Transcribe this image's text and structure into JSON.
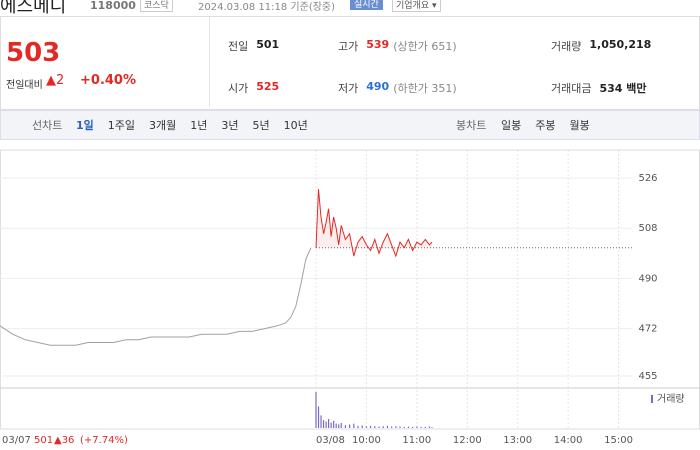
{
  "header": {
    "name": "에스메디",
    "code": "118000",
    "market": "코스닥",
    "timestamp": "2024.03.08 11:18 기준(장중)",
    "realtime": "실시간",
    "company": "기업개요 ▾"
  },
  "quote": {
    "price": "503",
    "change_label": "전일대비",
    "change": "▲2",
    "change_pct": "+0.40%",
    "items": [
      {
        "label": "전일",
        "value": "501"
      },
      {
        "label": "고가",
        "value": "539",
        "note": "(상한가 651)"
      },
      {
        "label": "거래량",
        "value": "1,050,218"
      },
      {
        "label": "시가",
        "value": "525"
      },
      {
        "label": "저가",
        "value": "490",
        "note": "(하한가 351)"
      },
      {
        "label": "거래대금",
        "value": "534 백만"
      }
    ]
  },
  "tabs": {
    "line_label": "선차트",
    "line": [
      "1일",
      "1주일",
      "3개월",
      "1년",
      "3년",
      "5년",
      "10년"
    ],
    "candle_label": "봉차트",
    "candle": [
      "일봉",
      "주봉",
      "월봉"
    ]
  },
  "chart_data": {
    "type": "line",
    "xlim": [
      -376,
      376
    ],
    "ylim": [
      455,
      526
    ],
    "yticks": [
      526,
      508,
      490,
      472,
      455
    ],
    "xticks": [
      {
        "value": -376,
        "label": "03/07"
      },
      {
        "value": 0,
        "label": "03/08"
      },
      {
        "value": 60,
        "label": "10:00"
      },
      {
        "value": 120,
        "label": "11:00"
      },
      {
        "value": 180,
        "label": "12:00"
      },
      {
        "value": 240,
        "label": "13:00"
      },
      {
        "value": 300,
        "label": "14:00"
      },
      {
        "value": 360,
        "label": "15:00"
      }
    ],
    "reference": 501,
    "series": [
      {
        "color": "#a0a0a0",
        "x": [
          -376,
          -361,
          -346,
          -331,
          -316,
          -301,
          -286,
          -271,
          -256,
          -241,
          -226,
          -211,
          -196,
          -181,
          -166,
          -151,
          -136,
          -121,
          -106,
          -91,
          -76,
          -61,
          -46,
          -36,
          -30,
          -24,
          -18,
          -12,
          -6
        ],
        "values": [
          473,
          470,
          468,
          467,
          466,
          466,
          466,
          467,
          467,
          467,
          468,
          468,
          469,
          469,
          469,
          469,
          470,
          470,
          470,
          471,
          471,
          472,
          473,
          474,
          476,
          480,
          488,
          497,
          501
        ]
      },
      {
        "color": "#e22926",
        "x": [
          0,
          3,
          6,
          9,
          12,
          15,
          18,
          21,
          24,
          27,
          30,
          35,
          40,
          45,
          50,
          55,
          60,
          65,
          70,
          75,
          80,
          85,
          90,
          95,
          100,
          105,
          110,
          115,
          120,
          125,
          130,
          135,
          138
        ],
        "values": [
          501,
          522,
          512,
          506,
          510,
          515,
          505,
          512,
          508,
          502,
          509,
          504,
          506,
          498,
          503,
          505,
          502,
          500,
          504,
          499,
          503,
          506,
          502,
          498,
          503,
          501,
          504,
          500,
          503,
          502,
          504,
          502,
          503
        ]
      },
      {
        "name": "거래량",
        "color": "#7b68c8",
        "axis": "volume",
        "x": [
          0,
          3,
          6,
          9,
          12,
          15,
          18,
          21,
          24,
          27,
          30,
          35,
          40,
          45,
          50,
          55,
          60,
          65,
          70,
          75,
          80,
          85,
          90,
          95,
          100,
          105,
          110,
          115,
          120,
          125,
          130,
          135,
          138
        ],
        "values": [
          100,
          60,
          35,
          22,
          18,
          25,
          15,
          20,
          12,
          10,
          14,
          8,
          10,
          12,
          6,
          7,
          5,
          6,
          5,
          4,
          5,
          6,
          4,
          5,
          4,
          3,
          4,
          3,
          4,
          3,
          3,
          4,
          2
        ]
      }
    ],
    "volume_lim": [
      0,
      100
    ],
    "footer": {
      "prev_close": "501",
      "prev_change": "▲36",
      "prev_change_pct": "(+7.74%)"
    }
  }
}
